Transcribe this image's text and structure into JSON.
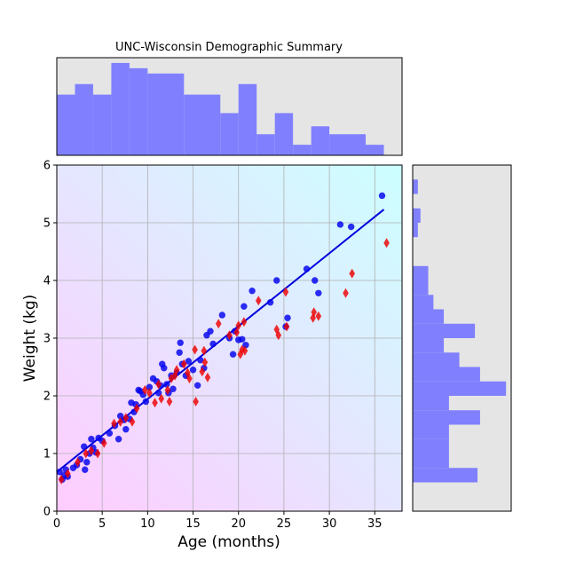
{
  "chart_data": {
    "type": "scatter",
    "title": "UNC-Wisconsin Demographic Summary",
    "xlabel": "Age (months)",
    "ylabel": "Weight (kg)",
    "xlim": [
      0,
      38
    ],
    "ylim": [
      0,
      6
    ],
    "x_ticks": [
      "0",
      "5",
      "10",
      "15",
      "20",
      "25",
      "30",
      "35"
    ],
    "y_ticks": [
      "0",
      "1",
      "2",
      "3",
      "4",
      "5",
      "6"
    ],
    "grid": true,
    "background_gradient": [
      "#ffccff",
      "#ccffff"
    ],
    "series": [
      {
        "color": "#0000ee",
        "marker": "circle",
        "points": [
          [
            0.3,
            0.68
          ],
          [
            0.6,
            0.55
          ],
          [
            0.8,
            0.62
          ],
          [
            1.0,
            0.72
          ],
          [
            1.2,
            0.6
          ],
          [
            1.8,
            0.75
          ],
          [
            2.2,
            0.8
          ],
          [
            2.6,
            0.9
          ],
          [
            3.0,
            1.12
          ],
          [
            3.1,
            0.72
          ],
          [
            3.3,
            0.85
          ],
          [
            3.6,
            1.0
          ],
          [
            3.8,
            1.25
          ],
          [
            4.0,
            1.1
          ],
          [
            4.3,
            1.02
          ],
          [
            4.6,
            1.27
          ],
          [
            5.0,
            1.22
          ],
          [
            5.8,
            1.35
          ],
          [
            6.4,
            1.48
          ],
          [
            6.8,
            1.25
          ],
          [
            7.0,
            1.65
          ],
          [
            7.4,
            1.58
          ],
          [
            7.6,
            1.42
          ],
          [
            8.0,
            1.6
          ],
          [
            8.2,
            1.88
          ],
          [
            8.5,
            1.72
          ],
          [
            8.7,
            1.85
          ],
          [
            9.0,
            2.1
          ],
          [
            9.2,
            2.08
          ],
          [
            9.5,
            2.02
          ],
          [
            9.8,
            1.9
          ],
          [
            10.2,
            2.15
          ],
          [
            10.6,
            2.3
          ],
          [
            11.0,
            2.25
          ],
          [
            11.2,
            2.05
          ],
          [
            11.4,
            2.18
          ],
          [
            11.6,
            2.55
          ],
          [
            11.8,
            2.48
          ],
          [
            12.1,
            2.2
          ],
          [
            12.3,
            2.05
          ],
          [
            12.6,
            2.35
          ],
          [
            12.8,
            2.12
          ],
          [
            13.2,
            2.4
          ],
          [
            13.5,
            2.75
          ],
          [
            13.6,
            2.92
          ],
          [
            13.8,
            2.55
          ],
          [
            14.2,
            2.35
          ],
          [
            14.5,
            2.6
          ],
          [
            15.0,
            2.45
          ],
          [
            15.5,
            2.18
          ],
          [
            15.8,
            2.62
          ],
          [
            16.2,
            2.48
          ],
          [
            16.5,
            3.05
          ],
          [
            16.9,
            3.12
          ],
          [
            17.2,
            2.9
          ],
          [
            18.2,
            3.4
          ],
          [
            19.0,
            3.0
          ],
          [
            19.4,
            2.72
          ],
          [
            19.6,
            3.12
          ],
          [
            20.0,
            2.97
          ],
          [
            20.4,
            2.98
          ],
          [
            20.6,
            3.55
          ],
          [
            20.8,
            2.88
          ],
          [
            21.5,
            3.82
          ],
          [
            23.5,
            3.62
          ],
          [
            24.2,
            4.0
          ],
          [
            25.2,
            3.2
          ],
          [
            25.4,
            3.35
          ],
          [
            27.5,
            4.2
          ],
          [
            28.4,
            4.0
          ],
          [
            28.8,
            3.78
          ],
          [
            31.2,
            4.97
          ],
          [
            32.4,
            4.93
          ],
          [
            35.8,
            5.47
          ]
        ]
      },
      {
        "color": "#ee0000",
        "marker": "diamond",
        "points": [
          [
            0.5,
            0.55
          ],
          [
            1.2,
            0.65
          ],
          [
            2.3,
            0.85
          ],
          [
            3.2,
            1.0
          ],
          [
            3.8,
            1.05
          ],
          [
            4.5,
            1.0
          ],
          [
            5.2,
            1.18
          ],
          [
            6.3,
            1.52
          ],
          [
            7.0,
            1.55
          ],
          [
            7.6,
            1.62
          ],
          [
            8.3,
            1.55
          ],
          [
            8.8,
            1.78
          ],
          [
            9.7,
            2.1
          ],
          [
            10.2,
            2.05
          ],
          [
            10.8,
            1.88
          ],
          [
            11.2,
            2.2
          ],
          [
            11.5,
            1.95
          ],
          [
            12.2,
            2.1
          ],
          [
            12.4,
            1.9
          ],
          [
            12.6,
            2.3
          ],
          [
            13.0,
            2.35
          ],
          [
            13.2,
            2.45
          ],
          [
            14.0,
            2.55
          ],
          [
            14.4,
            2.4
          ],
          [
            14.6,
            2.3
          ],
          [
            15.2,
            2.8
          ],
          [
            15.3,
            1.9
          ],
          [
            16.0,
            2.42
          ],
          [
            16.3,
            2.58
          ],
          [
            16.6,
            2.32
          ],
          [
            16.2,
            2.78
          ],
          [
            17.8,
            3.25
          ],
          [
            19.0,
            3.05
          ],
          [
            19.8,
            3.1
          ],
          [
            20.0,
            3.22
          ],
          [
            20.2,
            2.72
          ],
          [
            20.4,
            2.8
          ],
          [
            20.6,
            3.28
          ],
          [
            20.7,
            2.78
          ],
          [
            22.2,
            3.65
          ],
          [
            24.2,
            3.15
          ],
          [
            24.4,
            3.05
          ],
          [
            25.3,
            3.2
          ],
          [
            25.2,
            3.8
          ],
          [
            28.2,
            3.35
          ],
          [
            28.3,
            3.45
          ],
          [
            28.8,
            3.38
          ],
          [
            31.8,
            3.78
          ],
          [
            32.5,
            4.12
          ],
          [
            36.3,
            4.65
          ]
        ]
      }
    ],
    "fit_line": {
      "color": "#0000dd",
      "x": [
        0,
        36
      ],
      "y": [
        0.68,
        5.23
      ]
    },
    "x_histogram": {
      "color": "#8080ff",
      "bins": [
        [
          0,
          2,
          23
        ],
        [
          2,
          4,
          27
        ],
        [
          4,
          6,
          23
        ],
        [
          6,
          8,
          35
        ],
        [
          8,
          10,
          33
        ],
        [
          10,
          14,
          31
        ],
        [
          14,
          18,
          23
        ],
        [
          18,
          20,
          16
        ],
        [
          20,
          22,
          27
        ],
        [
          22,
          24,
          8
        ],
        [
          24,
          26,
          16
        ],
        [
          26,
          28,
          4
        ],
        [
          28,
          30,
          11
        ],
        [
          30,
          34,
          8
        ],
        [
          34,
          36,
          4
        ]
      ],
      "ymax": 37
    },
    "y_histogram": {
      "color": "#8080ff",
      "bins": [
        [
          0.5,
          0.75,
          12.5
        ],
        [
          0.75,
          1.0,
          7
        ],
        [
          1.0,
          1.25,
          7
        ],
        [
          1.25,
          1.5,
          7
        ],
        [
          1.5,
          1.75,
          13
        ],
        [
          1.75,
          2.0,
          7
        ],
        [
          2.0,
          2.25,
          18
        ],
        [
          2.25,
          2.5,
          13
        ],
        [
          2.5,
          2.75,
          9
        ],
        [
          2.75,
          3.0,
          6
        ],
        [
          3.0,
          3.25,
          12
        ],
        [
          3.25,
          3.5,
          6
        ],
        [
          3.5,
          3.75,
          4
        ],
        [
          3.75,
          4.0,
          3
        ],
        [
          4.0,
          4.25,
          3
        ],
        [
          4.75,
          5.0,
          1
        ],
        [
          5.0,
          5.25,
          1.5
        ],
        [
          5.5,
          5.75,
          1
        ]
      ],
      "xmax": 19
    }
  }
}
